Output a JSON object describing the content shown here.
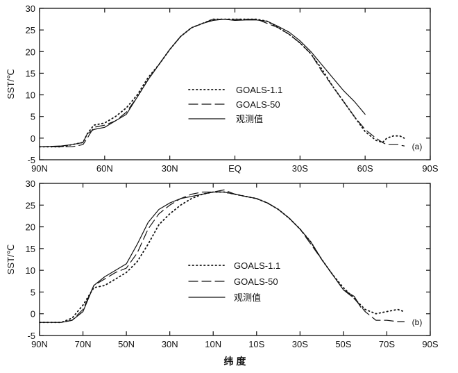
{
  "chart_data": [
    {
      "type": "line",
      "panel_label": "(a)",
      "ylabel": "SST/℃",
      "xlabel": "",
      "xlim": [
        90,
        -90
      ],
      "ylim": [
        -5,
        30
      ],
      "xticks": [
        90,
        60,
        30,
        0,
        -30,
        -60,
        -90
      ],
      "xtick_labels": [
        "90N",
        "60N",
        "30N",
        "EQ",
        "30S",
        "60S",
        "90S"
      ],
      "yticks": [
        -5,
        0,
        5,
        10,
        15,
        20,
        25,
        30
      ],
      "ytick_labels": [
        "-5",
        "0",
        "5",
        "10",
        "15",
        "20",
        "25",
        "30"
      ],
      "legend_position": "center",
      "series": [
        {
          "name": "GOALS-1.1",
          "style": "dotted",
          "x": [
            90,
            80,
            75,
            70,
            68,
            65,
            60,
            55,
            50,
            45,
            40,
            35,
            30,
            25,
            20,
            15,
            10,
            5,
            0,
            -5,
            -10,
            -15,
            -20,
            -25,
            -30,
            -35,
            -40,
            -45,
            -50,
            -55,
            -60,
            -65,
            -68,
            -70,
            -73,
            -76,
            -78
          ],
          "y": [
            -2,
            -2,
            -1.5,
            -1,
            1,
            3,
            3.5,
            5,
            7,
            10,
            14,
            17,
            20.5,
            23.5,
            25.5,
            26.5,
            27.5,
            27.5,
            27.5,
            27.5,
            27.5,
            27,
            25.5,
            24,
            22,
            19.5,
            16,
            12,
            8.5,
            5,
            1.5,
            -0.5,
            -1,
            0,
            0.5,
            0.5,
            0
          ]
        },
        {
          "name": "GOALS-50",
          "style": "dashed",
          "x": [
            90,
            80,
            75,
            70,
            68,
            65,
            60,
            55,
            50,
            45,
            40,
            35,
            30,
            25,
            20,
            15,
            10,
            5,
            0,
            -5,
            -10,
            -15,
            -20,
            -25,
            -30,
            -35,
            -40,
            -45,
            -50,
            -55,
            -60,
            -65,
            -68,
            -70,
            -75,
            -78
          ],
          "y": [
            -2,
            -2,
            -2,
            -1.5,
            0,
            2.5,
            3,
            4,
            6,
            9.5,
            13.5,
            17,
            20.5,
            23.5,
            25.5,
            26.5,
            27.5,
            27.5,
            27.5,
            27.5,
            27.5,
            26.5,
            25.5,
            24,
            22,
            19.5,
            15.5,
            12,
            8.5,
            5,
            2,
            0,
            -1,
            -1.5,
            -1.5,
            -1.8
          ]
        },
        {
          "name": "观测值",
          "style": "solid",
          "x": [
            90,
            80,
            75,
            70,
            68,
            65,
            60,
            55,
            50,
            45,
            40,
            35,
            30,
            25,
            20,
            15,
            10,
            5,
            0,
            -5,
            -10,
            -15,
            -20,
            -25,
            -30,
            -35,
            -40,
            -45,
            -50,
            -55,
            -60
          ],
          "y": [
            -2,
            -1.8,
            -1.5,
            -1,
            1,
            2,
            2.5,
            4,
            5.5,
            9.5,
            13.5,
            17,
            20.5,
            23.5,
            25.5,
            26.5,
            27.2,
            27.5,
            27.2,
            27.3,
            27.3,
            27,
            25.8,
            24.5,
            22.5,
            20,
            17,
            14,
            11,
            8.5,
            5.5
          ]
        }
      ]
    },
    {
      "type": "line",
      "panel_label": "(b)",
      "ylabel": "SST/℃",
      "xlabel": "纬 度",
      "xlim": [
        90,
        -90
      ],
      "ylim": [
        -5,
        30
      ],
      "xticks": [
        90,
        70,
        50,
        30,
        10,
        -10,
        -30,
        -50,
        -70,
        -90
      ],
      "xtick_labels": [
        "90N",
        "70N",
        "50N",
        "30N",
        "10N",
        "10S",
        "30S",
        "50S",
        "70S",
        "90S"
      ],
      "yticks": [
        -5,
        0,
        5,
        10,
        15,
        20,
        25,
        30
      ],
      "ytick_labels": [
        "-5",
        "0",
        "5",
        "10",
        "15",
        "20",
        "25",
        "30"
      ],
      "legend_position": "center-right",
      "series": [
        {
          "name": "GOALS-1.1",
          "style": "dotted",
          "x": [
            90,
            80,
            75,
            70,
            65,
            60,
            55,
            50,
            45,
            40,
            35,
            30,
            25,
            20,
            15,
            10,
            5,
            0,
            -5,
            -10,
            -15,
            -20,
            -25,
            -30,
            -35,
            -40,
            -45,
            -50,
            -55,
            -60,
            -65,
            -70,
            -75,
            -78
          ],
          "y": [
            -2,
            -2,
            -1,
            2,
            6,
            6.5,
            8,
            9.5,
            12,
            16,
            20.5,
            23,
            25,
            26.5,
            27.5,
            28,
            28,
            27.5,
            27,
            26.5,
            25.5,
            24,
            22,
            19.5,
            16.5,
            12.5,
            9,
            6,
            3.5,
            1,
            0,
            0.5,
            1,
            0.5
          ]
        },
        {
          "name": "GOALS-50",
          "style": "dashed",
          "x": [
            90,
            80,
            75,
            70,
            65,
            60,
            55,
            50,
            45,
            40,
            35,
            30,
            25,
            20,
            15,
            10,
            5,
            0,
            -5,
            -10,
            -15,
            -20,
            -25,
            -30,
            -35,
            -40,
            -45,
            -50,
            -55,
            -60,
            -65,
            -70,
            -75,
            -78
          ],
          "y": [
            -2,
            -2,
            -1.5,
            1,
            6.5,
            8,
            9.5,
            10.5,
            14,
            19.5,
            23,
            25,
            26.5,
            27.5,
            28,
            28,
            28.5,
            27.5,
            27,
            26.5,
            25.5,
            24,
            22,
            19.5,
            16,
            12.5,
            9,
            5.5,
            3.5,
            0.5,
            -1.5,
            -1.5,
            -1.8,
            -1.8
          ]
        },
        {
          "name": "观测值",
          "style": "solid",
          "x": [
            90,
            80,
            75,
            70,
            65,
            60,
            55,
            50,
            45,
            40,
            35,
            30,
            25,
            20,
            15,
            10,
            5,
            0,
            -5,
            -10,
            -15,
            -20,
            -25,
            -30,
            -35,
            -40,
            -45,
            -50,
            -55,
            -58
          ],
          "y": [
            -2,
            -2,
            -1.5,
            0.5,
            6.5,
            8.5,
            10,
            11.5,
            16,
            21,
            24,
            25.5,
            26.5,
            27,
            27.5,
            28,
            28,
            27.5,
            27,
            26.5,
            25.5,
            24,
            22,
            19.5,
            16.5,
            12.5,
            9,
            5.5,
            4,
            1.5
          ]
        }
      ]
    }
  ],
  "legend_labels": [
    "GOALS-1.1",
    "GOALS-50",
    "观测值"
  ]
}
